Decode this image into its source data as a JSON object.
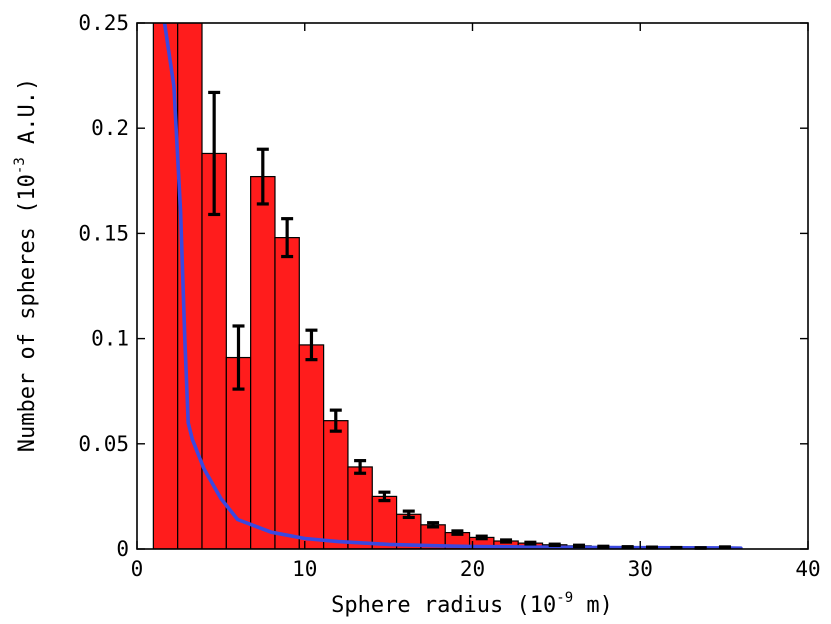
{
  "chart_data": {
    "type": "bar",
    "xlabel_main": "Sphere radius (10",
    "xlabel_exp": "-9",
    "xlabel_tail": " m)",
    "ylabel_main": "Number of spheres (10",
    "ylabel_exp": "-3",
    "ylabel_tail": " A.U.)",
    "xlim": [
      0,
      40
    ],
    "ylim": [
      0,
      0.25
    ],
    "xticks": [
      0,
      10,
      20,
      30,
      40
    ],
    "xtick_labels": [
      "0",
      "10",
      "20",
      "30",
      "40"
    ],
    "yticks": [
      0,
      0.05,
      0.1,
      0.15,
      0.2,
      0.25
    ],
    "ytick_labels": [
      "0",
      "0.05",
      "0.1",
      "0.15",
      "0.2",
      "0.25"
    ],
    "bar_width": 1.45,
    "bars": [
      {
        "x": 1.7,
        "value": 0.26,
        "err": 0
      },
      {
        "x": 3.15,
        "value": 0.26,
        "err": 0
      },
      {
        "x": 4.6,
        "value": 0.188,
        "err": 0.029
      },
      {
        "x": 6.05,
        "value": 0.091,
        "err": 0.015
      },
      {
        "x": 7.5,
        "value": 0.177,
        "err": 0.013
      },
      {
        "x": 8.95,
        "value": 0.148,
        "err": 0.009
      },
      {
        "x": 10.4,
        "value": 0.097,
        "err": 0.007
      },
      {
        "x": 11.85,
        "value": 0.061,
        "err": 0.005
      },
      {
        "x": 13.3,
        "value": 0.039,
        "err": 0.003
      },
      {
        "x": 14.75,
        "value": 0.025,
        "err": 0.002
      },
      {
        "x": 16.2,
        "value": 0.0165,
        "err": 0.0015
      },
      {
        "x": 17.65,
        "value": 0.0115,
        "err": 0.001
      },
      {
        "x": 19.1,
        "value": 0.0078,
        "err": 0.0008
      },
      {
        "x": 20.55,
        "value": 0.0055,
        "err": 0.0006
      },
      {
        "x": 22.0,
        "value": 0.0038,
        "err": 0.0005
      },
      {
        "x": 23.45,
        "value": 0.0028,
        "err": 0.0004
      },
      {
        "x": 24.9,
        "value": 0.002,
        "err": 0.0003
      },
      {
        "x": 26.35,
        "value": 0.0015,
        "err": 0.0003
      },
      {
        "x": 27.8,
        "value": 0.0011,
        "err": 0.0002
      },
      {
        "x": 29.25,
        "value": 0.0009,
        "err": 0.0002
      },
      {
        "x": 30.7,
        "value": 0.0007,
        "err": 0.0002
      },
      {
        "x": 32.15,
        "value": 0.0006,
        "err": 0.0001
      },
      {
        "x": 33.6,
        "value": 0.0005,
        "err": 0.0001
      },
      {
        "x": 35.05,
        "value": 0.0008,
        "err": 0.0002
      }
    ],
    "curve": {
      "x": [
        1.55,
        2.2,
        2.6,
        2.85,
        3.05,
        3.3,
        4.0,
        5.0,
        6.0,
        8.0,
        10.0,
        12.0,
        15.0,
        18.0,
        20.0,
        25.0,
        30.0,
        35.0,
        36.0
      ],
      "y": [
        0.255,
        0.22,
        0.16,
        0.1,
        0.06,
        0.052,
        0.038,
        0.024,
        0.014,
        0.008,
        0.005,
        0.0035,
        0.0022,
        0.0015,
        0.0012,
        0.0008,
        0.0006,
        0.0005,
        0.0004
      ]
    },
    "colors": {
      "bar_fill": "#ff1c1c",
      "bar_edge": "#000000",
      "curve": "#3a48e0",
      "error_bar": "#000000"
    }
  }
}
